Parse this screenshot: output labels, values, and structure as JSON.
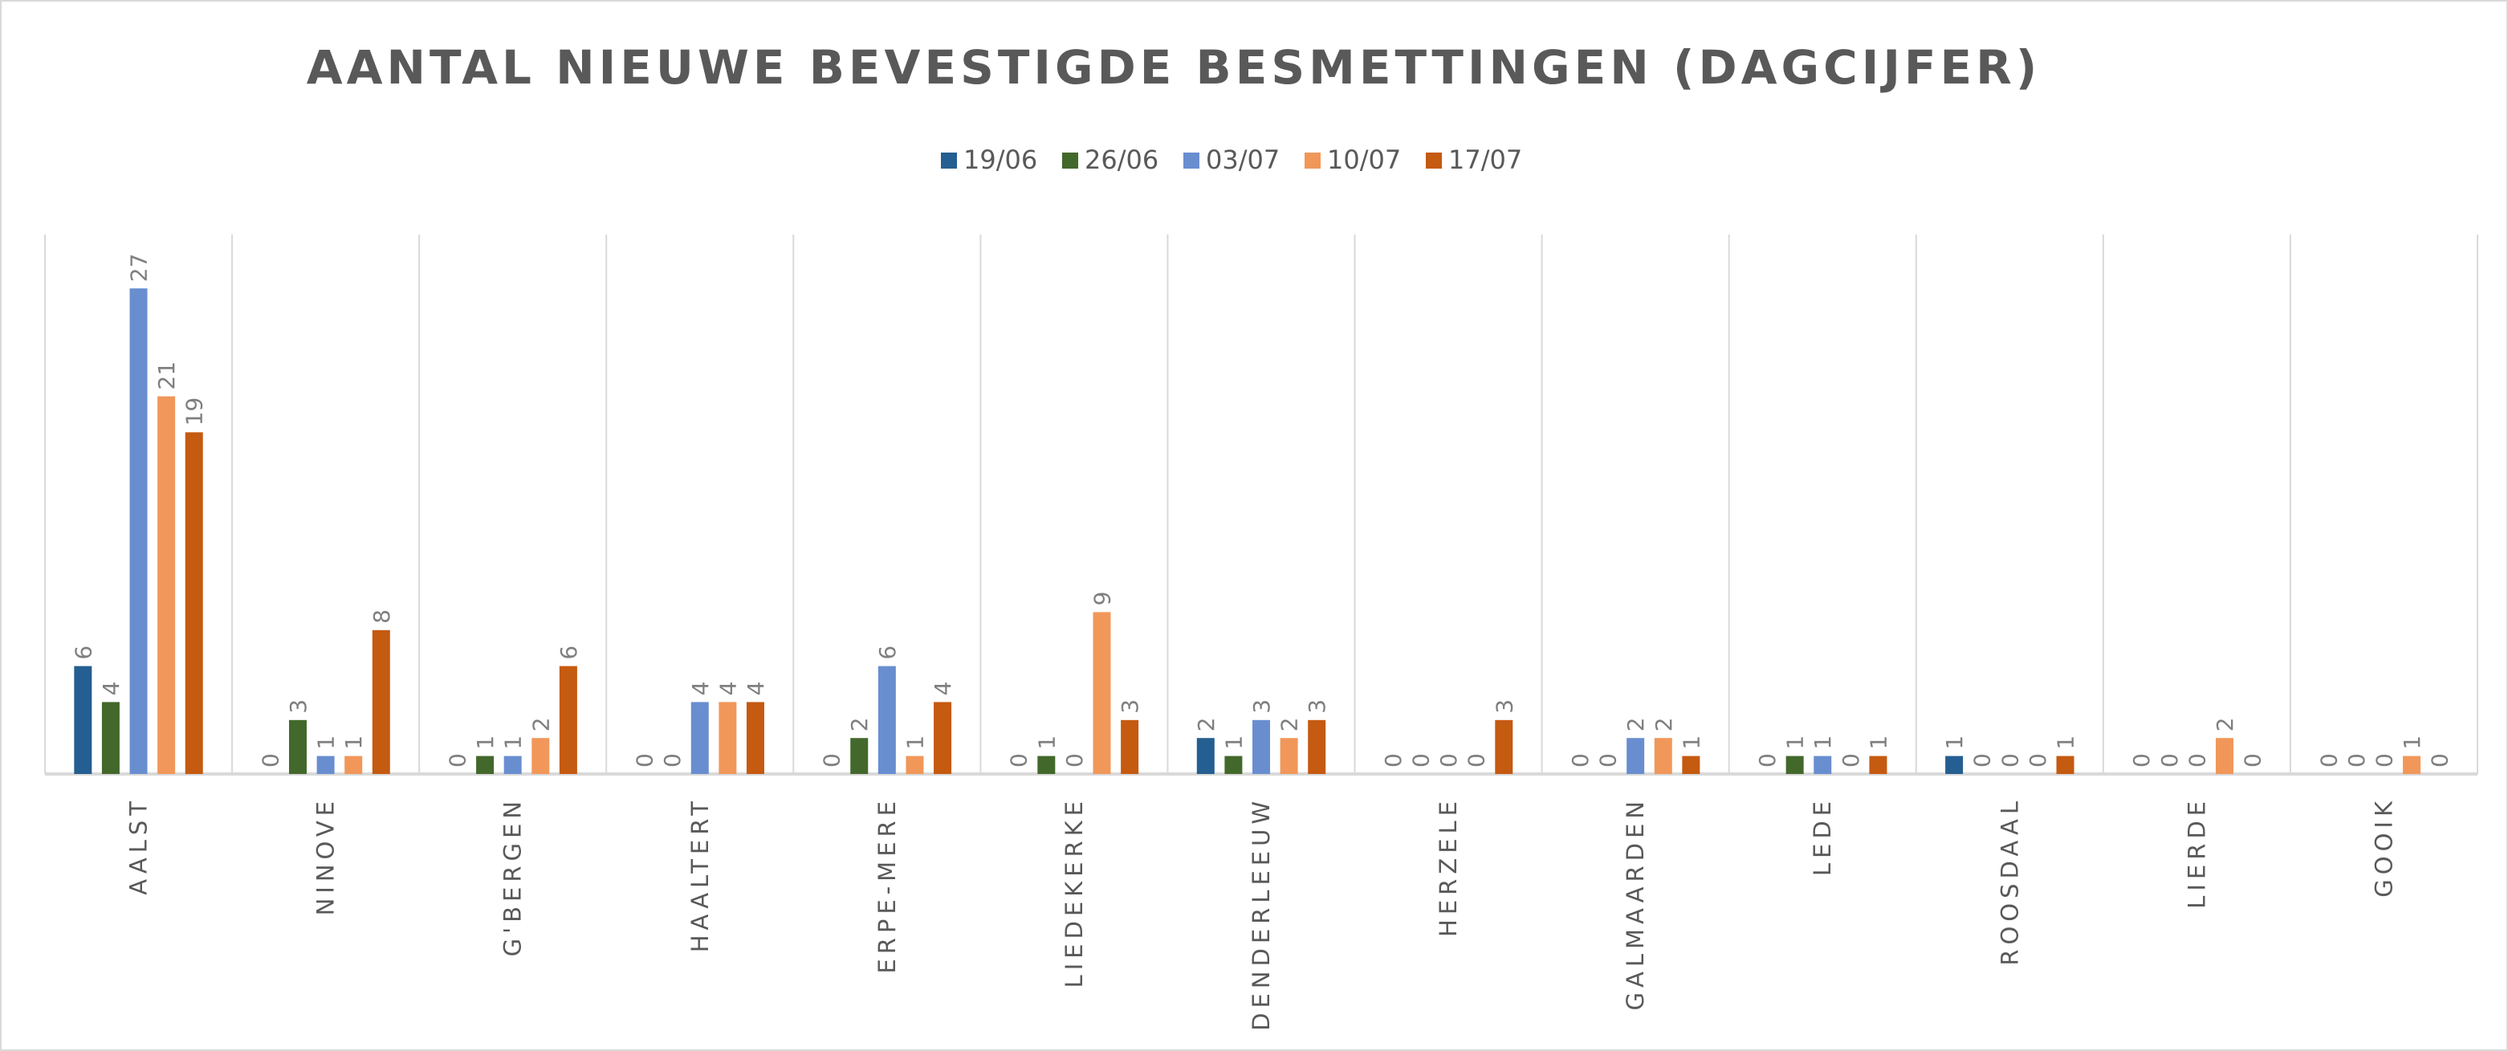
{
  "chart_data": {
    "type": "bar",
    "title": "AANTAL NIEUWE BEVESTIGDE BESMETTINGEN (DAGCIJFER)",
    "xlabel": "",
    "ylabel": "",
    "ylim": [
      0,
      30
    ],
    "grid": "vertical category separators",
    "legend_position": "top",
    "categories": [
      "AALST",
      "NINOVE",
      "G'BERGEN",
      "HAALTERT",
      "ERPE-MERE",
      "LIEDEKERKE",
      "DENDERLEEUW",
      "HERZELE",
      "GALMAARDEN",
      "LEDE",
      "ROOSDAAL",
      "LIERDE",
      "GOOIK"
    ],
    "series": [
      {
        "name": "19/06",
        "color": "#255e91",
        "values": [
          6,
          0,
          0,
          0,
          0,
          0,
          2,
          0,
          0,
          0,
          1,
          0,
          0
        ]
      },
      {
        "name": "26/06",
        "color": "#43682b",
        "values": [
          4,
          3,
          1,
          0,
          2,
          1,
          1,
          0,
          0,
          1,
          0,
          0,
          0
        ]
      },
      {
        "name": "03/07",
        "color": "#698ed0",
        "values": [
          27,
          1,
          1,
          4,
          6,
          0,
          3,
          0,
          2,
          1,
          0,
          0,
          0
        ]
      },
      {
        "name": "10/07",
        "color": "#f1975a",
        "values": [
          21,
          1,
          2,
          4,
          1,
          9,
          2,
          0,
          2,
          0,
          0,
          2,
          1
        ]
      },
      {
        "name": "17/07",
        "color": "#c55a11",
        "values": [
          19,
          8,
          6,
          4,
          4,
          3,
          3,
          3,
          1,
          1,
          1,
          0,
          0
        ]
      }
    ]
  }
}
